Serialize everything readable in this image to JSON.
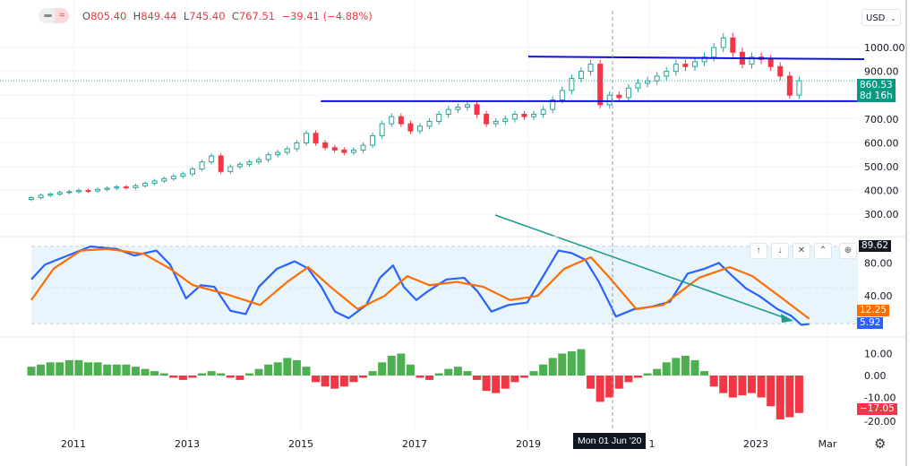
{
  "header": {
    "o_label": "O",
    "o": "805.40",
    "h_label": "H",
    "h": "849.44",
    "l_label": "L",
    "l": "745.40",
    "c_label": "C",
    "c": "767.51",
    "change": "−39.41 (−4.88%)",
    "currency": "USD",
    "series_toggle_icon": "wave-icon"
  },
  "colors": {
    "up": "#26a69a",
    "down": "#f23645",
    "level_lines": "#1010e0",
    "trend_line": "#1f9c8f",
    "stoch_k": "#2962ff",
    "stoch_d": "#ff6d00",
    "hist_up": "#4caf50",
    "hist_down": "#f23645",
    "band": "#e3f2fd"
  },
  "chart_data": [
    {
      "type": "candlestick",
      "pane": "price",
      "x_start": 2010.26,
      "x_step_years": 0.1667,
      "closes": [
        370,
        380,
        385,
        392,
        395,
        400,
        398,
        405,
        410,
        415,
        412,
        420,
        430,
        440,
        450,
        460,
        470,
        490,
        520,
        545,
        480,
        500,
        510,
        520,
        530,
        550,
        560,
        575,
        600,
        640,
        600,
        580,
        570,
        560,
        570,
        590,
        630,
        680,
        710,
        680,
        650,
        670,
        690,
        720,
        740,
        750,
        760,
        720,
        680,
        690,
        700,
        720,
        710,
        720,
        740,
        780,
        820,
        870,
        900,
        930,
        760,
        800,
        790,
        830,
        850,
        860,
        880,
        900,
        930,
        920,
        940,
        960,
        1000,
        1040,
        980,
        930,
        960,
        950,
        920,
        880,
        800,
        860.53
      ],
      "y_ticks": [
        "1000.00",
        "900.00",
        "700.00",
        "600.00",
        "500.00",
        "400.00",
        "300.00"
      ],
      "last_price": "860.53",
      "countdown": "8d 16h",
      "levels": [
        {
          "from": 2019.0,
          "value": 962,
          "to_value": 951
        },
        {
          "from": 2015.35,
          "value": 775,
          "to_value": 775
        }
      ],
      "ylim": [
        250,
        1060
      ]
    },
    {
      "type": "line",
      "pane": "stochastic",
      "series": [
        {
          "values_at_years": [
            [
              2010.26,
              60
            ],
            [
              2010.5,
              78
            ],
            [
              2010.9,
              89
            ],
            [
              2011.3,
              100
            ],
            [
              2011.76,
              97
            ],
            [
              2012.07,
              89
            ],
            [
              2012.46,
              95
            ],
            [
              2012.7,
              78
            ],
            [
              2012.98,
              37
            ],
            [
              2013.24,
              53
            ],
            [
              2013.48,
              51
            ],
            [
              2013.76,
              22
            ],
            [
              2014.03,
              18
            ],
            [
              2014.26,
              51
            ],
            [
              2014.58,
              73
            ],
            [
              2014.89,
              82
            ],
            [
              2015.13,
              73
            ],
            [
              2015.36,
              51
            ],
            [
              2015.6,
              21
            ],
            [
              2015.84,
              13
            ],
            [
              2016.15,
              29
            ],
            [
              2016.39,
              62
            ],
            [
              2016.62,
              77
            ],
            [
              2016.81,
              51
            ],
            [
              2017.03,
              35
            ],
            [
              2017.24,
              46
            ],
            [
              2017.56,
              60
            ],
            [
              2017.87,
              62
            ],
            [
              2018.1,
              46
            ],
            [
              2018.35,
              21
            ],
            [
              2018.65,
              29
            ],
            [
              2018.98,
              32
            ],
            [
              2019.2,
              57
            ],
            [
              2019.53,
              95
            ],
            [
              2019.76,
              92
            ],
            [
              2020.0,
              84
            ],
            [
              2020.24,
              57
            ],
            [
              2020.54,
              15
            ],
            [
              2020.86,
              24
            ],
            [
              2021.17,
              27
            ],
            [
              2021.49,
              33
            ],
            [
              2021.8,
              67
            ],
            [
              2022.1,
              73
            ],
            [
              2022.35,
              80
            ],
            [
              2022.59,
              64
            ],
            [
              2022.83,
              49
            ],
            [
              2023.06,
              40
            ],
            [
              2023.38,
              24
            ],
            [
              2023.62,
              16
            ],
            [
              2023.8,
              5
            ],
            [
              2023.94,
              5.92
            ]
          ]
        },
        {
          "values_at_years": [
            [
              2010.26,
              35
            ],
            [
              2010.65,
              73
            ],
            [
              2011.13,
              95
            ],
            [
              2011.6,
              97
            ],
            [
              2012.24,
              91
            ],
            [
              2012.7,
              73
            ],
            [
              2013.1,
              53
            ],
            [
              2013.65,
              43
            ],
            [
              2014.28,
              29
            ],
            [
              2014.76,
              57
            ],
            [
              2015.13,
              75
            ],
            [
              2015.52,
              51
            ],
            [
              2016.0,
              24
            ],
            [
              2016.47,
              40
            ],
            [
              2016.87,
              64
            ],
            [
              2017.26,
              53
            ],
            [
              2017.74,
              57
            ],
            [
              2018.21,
              51
            ],
            [
              2018.68,
              35
            ],
            [
              2019.16,
              40
            ],
            [
              2019.63,
              73
            ],
            [
              2020.1,
              87
            ],
            [
              2020.43,
              62
            ],
            [
              2020.9,
              24
            ],
            [
              2021.37,
              29
            ],
            [
              2022.0,
              62
            ],
            [
              2022.54,
              75
            ],
            [
              2022.94,
              64
            ],
            [
              2023.41,
              40
            ],
            [
              2023.94,
              12.25
            ]
          ]
        }
      ],
      "y_ticks": [
        "80.00",
        "40.00"
      ],
      "last_k": "5.92",
      "last_d": "12.25",
      "last_other": "89.62",
      "ylim": [
        0,
        100
      ]
    },
    {
      "type": "bar",
      "pane": "histogram",
      "x_start": 2010.26,
      "x_step_years": 0.1667,
      "values": [
        4,
        5,
        6,
        6,
        7,
        7,
        6,
        6,
        5,
        5,
        5,
        4,
        3,
        2,
        1,
        -1,
        -2,
        -1,
        1,
        2,
        1,
        -1,
        -2,
        1,
        3,
        5,
        6,
        8,
        7,
        4,
        -3,
        -5,
        -6,
        -5,
        -3,
        -1,
        2,
        6,
        9,
        10,
        5,
        -1,
        -2,
        1,
        3,
        4,
        2,
        -2,
        -7,
        -8,
        -6,
        -3,
        -1,
        2,
        5,
        8,
        10,
        11,
        12,
        -6,
        -12,
        -10,
        -6,
        -3,
        -1,
        1,
        3,
        6,
        8,
        9,
        7,
        2,
        -5,
        -8,
        -10,
        -9,
        -8,
        -10,
        -14,
        -20,
        -19,
        -17.05
      ],
      "y_ticks": [
        "10.00",
        "0.00",
        "-10.00",
        "-20.00"
      ],
      "last_value": "−17.05",
      "ylim": [
        -22,
        13
      ]
    }
  ],
  "x_axis": {
    "ticks": [
      {
        "label": "2011",
        "year": 2011
      },
      {
        "label": "2013",
        "year": 2013
      },
      {
        "label": "2015",
        "year": 2015
      },
      {
        "label": "2017",
        "year": 2017
      },
      {
        "label": "2019",
        "year": 2019
      },
      {
        "label": "1",
        "year": 2021.12
      },
      {
        "label": "2023",
        "year": 2023
      },
      {
        "label": "Mar",
        "year": 2024.26
      }
    ],
    "crosshair_label": "Mon 01 Jun '20",
    "crosshair_year": 2020.42
  },
  "pane_buttons": [
    "↑",
    "↓",
    "✕",
    "⌃"
  ]
}
